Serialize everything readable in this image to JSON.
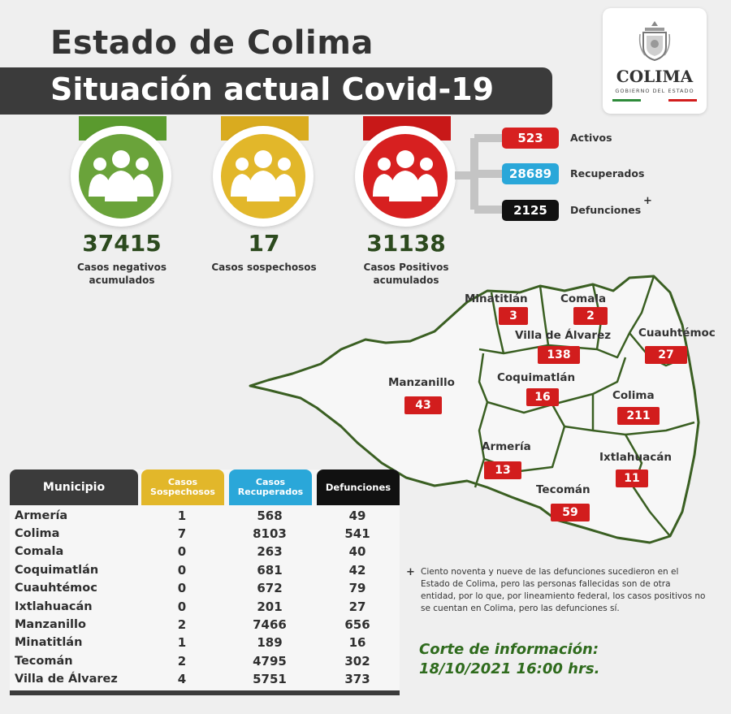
{
  "header": {
    "title": "Estado de Colima",
    "subtitle": "Situación actual Covid-19"
  },
  "logo": {
    "name": "COLIMA",
    "tagline": "GOBIERNO DEL ESTADO"
  },
  "stats": [
    {
      "value": "37415",
      "label_line1": "Casos negativos",
      "label_line2": "acumulados",
      "color": "#6aa33a",
      "tab": "#5a9a2e"
    },
    {
      "value": "17",
      "label_line1": "Casos sospechosos",
      "label_line2": "",
      "color": "#e2b72a",
      "tab": "#d9ab1f"
    },
    {
      "value": "31138",
      "label_line1": "Casos Positivos",
      "label_line2": "acumulados",
      "color": "#d72020",
      "tab": "#c81818"
    }
  ],
  "breakdown": [
    {
      "value": "523",
      "label": "Activos",
      "color": "#d72020"
    },
    {
      "value": "28689",
      "label": "Recuperados",
      "color": "#2aa7d9"
    },
    {
      "value": "2125",
      "label": "Defunciones",
      "color": "#111111",
      "mark": "+"
    }
  ],
  "map": {
    "municipalities": [
      {
        "name": "Minatitlán",
        "value": "3"
      },
      {
        "name": "Comala",
        "value": "2"
      },
      {
        "name": "Villa de Álvarez",
        "value": "138"
      },
      {
        "name": "Cuauhtémoc",
        "value": "27"
      },
      {
        "name": "Manzanillo",
        "value": "43"
      },
      {
        "name": "Coquimatlán",
        "value": "16"
      },
      {
        "name": "Colima",
        "value": "211"
      },
      {
        "name": "Armería",
        "value": "13"
      },
      {
        "name": "Ixtlahuacán",
        "value": "11"
      },
      {
        "name": "Tecomán",
        "value": "59"
      }
    ]
  },
  "table": {
    "headers": {
      "municipio": "Municipio",
      "sospechosos_1": "Casos",
      "sospechosos_2": "Sospechosos",
      "recuperados_1": "Casos",
      "recuperados_2": "Recuperados",
      "defunciones": "Defunciones"
    },
    "rows": [
      {
        "municipio": "Armería",
        "sospechosos": "1",
        "recuperados": "568",
        "defunciones": "49"
      },
      {
        "municipio": "Colima",
        "sospechosos": "7",
        "recuperados": "8103",
        "defunciones": "541"
      },
      {
        "municipio": "Comala",
        "sospechosos": "0",
        "recuperados": "263",
        "defunciones": "40"
      },
      {
        "municipio": "Coquimatlán",
        "sospechosos": "0",
        "recuperados": "681",
        "defunciones": "42"
      },
      {
        "municipio": "Cuauhtémoc",
        "sospechosos": "0",
        "recuperados": "672",
        "defunciones": "79"
      },
      {
        "municipio": "Ixtlahuacán",
        "sospechosos": "0",
        "recuperados": "201",
        "defunciones": "27"
      },
      {
        "municipio": "Manzanillo",
        "sospechosos": "2",
        "recuperados": "7466",
        "defunciones": "656"
      },
      {
        "municipio": "Minatitlán",
        "sospechosos": "1",
        "recuperados": "189",
        "defunciones": "16"
      },
      {
        "municipio": "Tecomán",
        "sospechosos": "2",
        "recuperados": "4795",
        "defunciones": "302"
      },
      {
        "municipio": "Villa de Álvarez",
        "sospechosos": "4",
        "recuperados": "5751",
        "defunciones": "373"
      }
    ]
  },
  "note": {
    "mark": "+",
    "text": "Ciento noventa y nueve de las defunciones sucedieron en el Estado de Colima, pero las personas fallecidas son de otra entidad, por lo que, por lineamiento federal, los casos positivos no se cuentan en Colima, pero las defunciones sí."
  },
  "corte": {
    "line1": "Corte de información:",
    "line2": "18/10/2021 16:00 hrs."
  },
  "colors": {
    "dark": "#3b3b3b",
    "green": "#6aa33a",
    "yellow": "#e2b72a",
    "red": "#d72020",
    "blue": "#2aa7d9",
    "map_green": "#3a5f22"
  },
  "icons": {
    "people": "group-people-icon",
    "coat_of_arms": "coat-of-arms-icon"
  }
}
